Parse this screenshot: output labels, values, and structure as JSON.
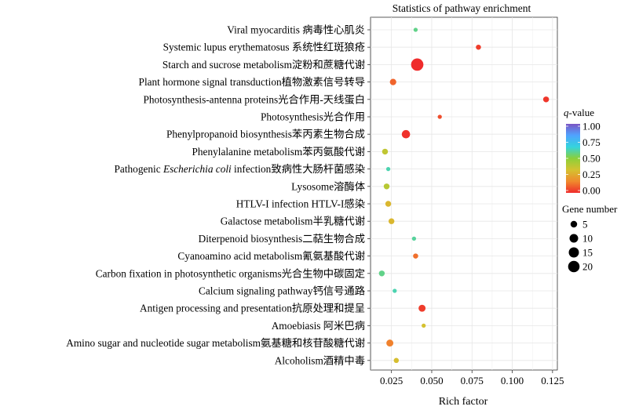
{
  "chart_data": {
    "type": "scatter",
    "title": "Statistics of pathway enrichment",
    "xlabel": "Rich factor",
    "ylabel": "",
    "xlim": [
      0.012,
      0.128
    ],
    "xticks": [
      0.025,
      0.05,
      0.075,
      0.1,
      0.125
    ],
    "xtick_labels": [
      "0.025",
      "0.050",
      "0.075",
      "0.100",
      "0.125"
    ],
    "grid": true,
    "legend_placement": "right",
    "color_legend": {
      "title_prefix": "q",
      "title_suffix": "-value",
      "ticks": [
        "1.00",
        "0.75",
        "0.50",
        "0.25",
        "0.00"
      ],
      "gradient": [
        "#7b55c4",
        "#4fa3ff",
        "#34d4de",
        "#8bd03a",
        "#d4c230",
        "#f08a2d",
        "#ef2b2b"
      ]
    },
    "size_legend": {
      "title": "Gene number",
      "values": [
        5,
        10,
        15,
        20
      ],
      "labels": [
        "5",
        "10",
        "15",
        "20"
      ]
    },
    "points": [
      {
        "label": "Viral myocarditis 病毒性心肌炎",
        "x": 0.04,
        "q": 0.58,
        "genes": 1
      },
      {
        "label": "Systemic lupus erythematosus 系统性红斑狼疮",
        "x": 0.079,
        "q": 0.03,
        "genes": 2
      },
      {
        "label": "Starch and sucrose metabolism淀粉和蔗糖代谢",
        "x": 0.041,
        "q": 0.0,
        "genes": 21
      },
      {
        "label": "Plant hormone signal transduction植物激素信号转导",
        "x": 0.026,
        "q": 0.1,
        "genes": 4
      },
      {
        "label": "Photosynthesis-antenna proteins光合作用-天线蛋白",
        "x": 0.121,
        "q": 0.02,
        "genes": 3
      },
      {
        "label": "Photosynthesis光合作用",
        "x": 0.055,
        "q": 0.06,
        "genes": 1
      },
      {
        "label": "Phenylpropanoid biosynthesis苯丙素生物合成",
        "x": 0.034,
        "q": 0.01,
        "genes": 8
      },
      {
        "label": "Phenylalanine metabolism苯丙氨酸代谢",
        "x": 0.021,
        "q": 0.38,
        "genes": 3
      },
      {
        "label": "Pathogenic <i>Escherichia coli</i> infection致病性大肠杆菌感染",
        "label_prefix": "Pathogenic ",
        "label_italic": "Escherichia coli",
        "label_suffix": " infection致病性大肠杆菌感染",
        "x": 0.023,
        "q": 0.62,
        "genes": 1
      },
      {
        "label": "Lysosome溶酶体",
        "x": 0.022,
        "q": 0.4,
        "genes": 3
      },
      {
        "label": "HTLV-I infection HTLV-I感染",
        "x": 0.023,
        "q": 0.3,
        "genes": 3
      },
      {
        "label": "Galactose metabolism半乳糖代谢",
        "x": 0.025,
        "q": 0.3,
        "genes": 3
      },
      {
        "label": "Diterpenoid biosynthesis二萜生物合成",
        "x": 0.039,
        "q": 0.6,
        "genes": 1
      },
      {
        "label": "Cyanoamino acid metabolism氰氨基酸代谢",
        "x": 0.04,
        "q": 0.12,
        "genes": 2
      },
      {
        "label": "Carbon fixation in photosynthetic organisms光合生物中碳固定",
        "x": 0.019,
        "q": 0.58,
        "genes": 3
      },
      {
        "label": "Calcium signaling pathway钙信号通路",
        "x": 0.027,
        "q": 0.62,
        "genes": 1
      },
      {
        "label": "Antigen processing and presentation抗原处理和提呈",
        "x": 0.044,
        "q": 0.03,
        "genes": 5
      },
      {
        "label": "Amoebiasis 阿米巴病",
        "x": 0.045,
        "q": 0.33,
        "genes": 1
      },
      {
        "label": "Amino sugar and nucleotide sugar metabolism氨基糖和核苷酸糖代谢",
        "x": 0.024,
        "q": 0.15,
        "genes": 5
      },
      {
        "label": "Alcoholism酒精中毒",
        "x": 0.028,
        "q": 0.32,
        "genes": 2
      }
    ]
  }
}
